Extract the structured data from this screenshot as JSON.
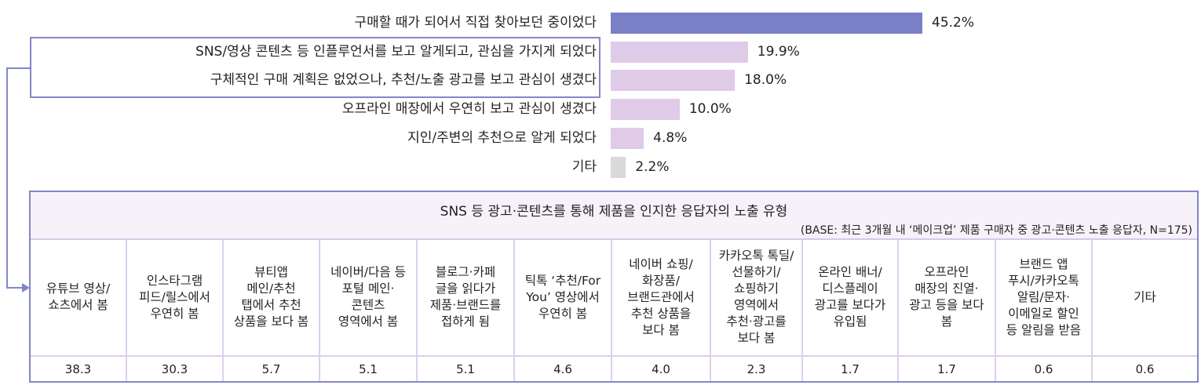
{
  "chart_data": {
    "type": "bar",
    "orientation": "horizontal",
    "categories": [
      "구매할 때가 되어서 직접 찾아보던 중이었다",
      "SNS/영상 콘텐츠 등 인플루언서를 보고 알게되고, 관심을 가지게 되었다",
      "구체적인 구매 계획은 없었으나, 추천/노출 광고를 보고 관심이 생겼다",
      "오프라인 매장에서 우연히 보고 관심이 생겼다",
      "지인/주변의 추천으로 알게 되었다",
      "기타"
    ],
    "values": [
      45.2,
      19.9,
      18.0,
      10.0,
      4.8,
      2.2
    ],
    "value_labels": [
      "45.2%",
      "19.9%",
      "18.0%",
      "10.0%",
      "4.8%",
      "2.2%"
    ],
    "colors": [
      "#7b7fc6",
      "#dfcbe8",
      "#dfcbe8",
      "#dfcbe8",
      "#dfcbe8",
      "#d9d9d9"
    ],
    "unit": "%"
  },
  "table": {
    "title": "SNS 등 광고·콘텐츠를 통해 제품을 인지한 응답자의 노출 유형",
    "base": "(BASE: 최근 3개월 내 ‘메이크업’ 제품 구매자 중 광고·콘텐츠 노출 응답자, N=175)",
    "columns": [
      {
        "label": "유튜브 영상/\n쇼츠에서 봄",
        "value": "38.3"
      },
      {
        "label": "인스타그램\n피드/릴스에서\n우연히 봄",
        "value": "30.3"
      },
      {
        "label": "뷰티앱\n메인/추천\n탭에서 추천\n상품을 보다 봄",
        "value": "5.7"
      },
      {
        "label": "네이버/다음 등\n포털 메인·\n콘텐츠\n영역에서 봄",
        "value": "5.1"
      },
      {
        "label": "블로그·카페\n글을 읽다가\n제품·브랜드를\n접하게 됨",
        "value": "5.1"
      },
      {
        "label": "틱톡 ‘추천/For\nYou’ 영상에서\n우연히 봄",
        "value": "4.6"
      },
      {
        "label": "네이버 쇼핑/\n화장품/\n브랜드관에서\n추천 상품을\n보다 봄",
        "value": "4.0"
      },
      {
        "label": "카카오톡 톡딜/\n선물하기/\n쇼핑하기\n영역에서\n추천·광고를\n보다 봄",
        "value": "2.3"
      },
      {
        "label": "온라인 배너/\n디스플레이\n광고를 보다가\n유입됨",
        "value": "1.7"
      },
      {
        "label": "오프라인\n매장의 진열·\n광고 등을 보다\n봄",
        "value": "1.7"
      },
      {
        "label": "브랜드 앱\n푸시/카카오톡\n알림/문자·\n이메일로 할인\n등 알림을 받음",
        "value": "0.6"
      },
      {
        "label": "기타",
        "value": "0.6"
      }
    ]
  }
}
